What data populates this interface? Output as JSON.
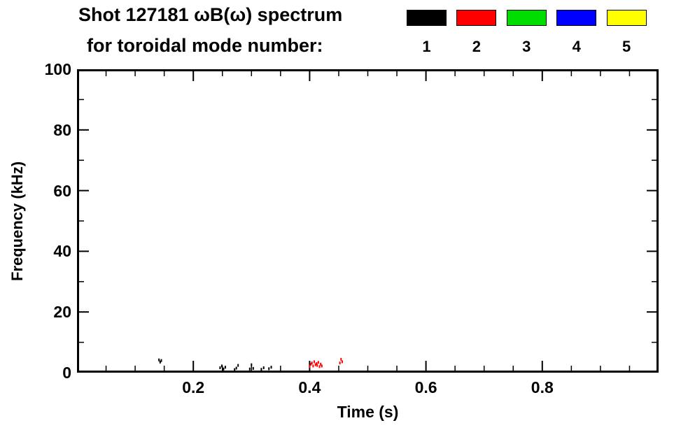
{
  "header": {
    "title_line1": "Shot 127181 ωB(ω) spectrum",
    "title_line2": "for toroidal mode number:"
  },
  "legend": {
    "position": "top-right",
    "entries": [
      {
        "label": "1",
        "color": "#000000"
      },
      {
        "label": "2",
        "color": "#ff0000"
      },
      {
        "label": "3",
        "color": "#00dd00"
      },
      {
        "label": "4",
        "color": "#0000ff"
      },
      {
        "label": "5",
        "color": "#ffff00"
      }
    ]
  },
  "axes": {
    "x_label": "Time (s)",
    "y_label": "Frequency (kHz)",
    "x_tick_labels": [
      "0.2",
      "0.4",
      "0.6",
      "0.8"
    ],
    "y_tick_labels": [
      "0",
      "20",
      "40",
      "60",
      "80",
      "100"
    ]
  },
  "chart_data": {
    "type": "scatter",
    "title": "Shot 127181 ωB(ω) spectrum for toroidal mode number:",
    "xlabel": "Time (s)",
    "ylabel": "Frequency (kHz)",
    "xlim": [
      0,
      1
    ],
    "ylim": [
      0,
      100
    ],
    "xticks": [
      0.2,
      0.4,
      0.6,
      0.8
    ],
    "yticks": [
      0,
      20,
      40,
      60,
      80,
      100
    ],
    "x_minor_step": 0.05,
    "y_minor_step": 10,
    "grid": false,
    "legend_position": "top-right",
    "series": [
      {
        "name": "toroidal mode n=1",
        "color": "#000000",
        "points": [
          [
            0.141,
            4.2
          ],
          [
            0.143,
            3.5
          ],
          [
            0.145,
            4.0
          ],
          [
            0.246,
            1.6
          ],
          [
            0.249,
            2.2
          ],
          [
            0.252,
            1.2
          ],
          [
            0.255,
            1.8
          ],
          [
            0.271,
            1.0
          ],
          [
            0.274,
            1.5
          ],
          [
            0.277,
            2.4
          ],
          [
            0.297,
            1.2
          ],
          [
            0.3,
            2.6
          ],
          [
            0.303,
            1.4
          ],
          [
            0.317,
            1.1
          ],
          [
            0.321,
            1.6
          ],
          [
            0.33,
            1.3
          ],
          [
            0.334,
            1.8
          ]
        ]
      },
      {
        "name": "toroidal mode n=2",
        "color": "#ff0000",
        "points": [
          [
            0.4,
            2.0
          ],
          [
            0.402,
            2.8
          ],
          [
            0.404,
            3.2
          ],
          [
            0.406,
            2.2
          ],
          [
            0.408,
            3.6
          ],
          [
            0.41,
            2.6
          ],
          [
            0.412,
            3.0
          ],
          [
            0.413,
            2.4
          ],
          [
            0.415,
            3.4
          ],
          [
            0.417,
            2.0
          ],
          [
            0.419,
            2.8
          ],
          [
            0.421,
            2.2
          ],
          [
            0.452,
            3.2
          ],
          [
            0.454,
            4.4
          ],
          [
            0.456,
            3.6
          ]
        ]
      },
      {
        "name": "toroidal mode n=3",
        "color": "#00dd00",
        "points": []
      },
      {
        "name": "toroidal mode n=4",
        "color": "#0000ff",
        "points": []
      },
      {
        "name": "toroidal mode n=5",
        "color": "#ffff00",
        "points": []
      }
    ]
  }
}
